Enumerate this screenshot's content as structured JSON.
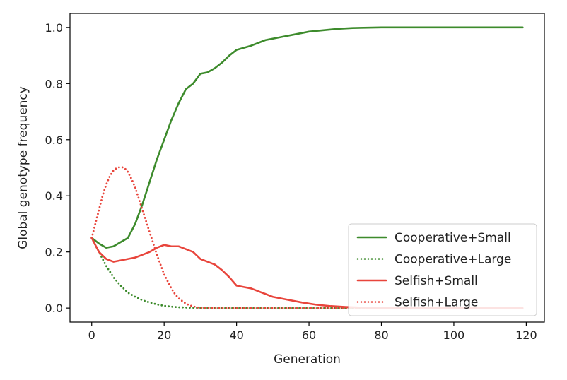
{
  "chart_data": {
    "type": "line",
    "xlabel": "Generation",
    "ylabel": "Global genotype frequency",
    "xlim": [
      -6,
      125
    ],
    "ylim": [
      -0.05,
      1.05
    ],
    "xticks": [
      0,
      20,
      40,
      60,
      80,
      100,
      120
    ],
    "yticks": [
      0.0,
      0.2,
      0.4,
      0.6,
      0.8,
      1.0
    ],
    "grid": false,
    "legend_position": "lower-right",
    "series": [
      {
        "name": "Cooperative+Small",
        "color": "#3d8b2c",
        "style": "solid",
        "x": [
          0,
          2,
          4,
          6,
          8,
          10,
          12,
          14,
          16,
          18,
          20,
          22,
          24,
          26,
          28,
          30,
          32,
          34,
          36,
          38,
          40,
          44,
          48,
          52,
          56,
          60,
          64,
          68,
          72,
          80,
          90,
          100,
          110,
          119
        ],
        "y": [
          0.25,
          0.23,
          0.215,
          0.22,
          0.235,
          0.25,
          0.3,
          0.37,
          0.45,
          0.53,
          0.6,
          0.67,
          0.73,
          0.78,
          0.8,
          0.835,
          0.84,
          0.855,
          0.875,
          0.9,
          0.92,
          0.935,
          0.955,
          0.965,
          0.975,
          0.985,
          0.99,
          0.995,
          0.998,
          1.0,
          1.0,
          1.0,
          1.0,
          1.0
        ]
      },
      {
        "name": "Cooperative+Large",
        "color": "#3d8b2c",
        "style": "dotted",
        "x": [
          0,
          2,
          4,
          6,
          8,
          10,
          12,
          14,
          16,
          18,
          20,
          22,
          24,
          26,
          28,
          30,
          35,
          40,
          50,
          60,
          70,
          80,
          90,
          100,
          110,
          119
        ],
        "y": [
          0.25,
          0.2,
          0.15,
          0.11,
          0.08,
          0.055,
          0.04,
          0.028,
          0.02,
          0.013,
          0.008,
          0.005,
          0.003,
          0.002,
          0.001,
          0.0005,
          0.0,
          0.0,
          0.0,
          0.0,
          0.0,
          0.0,
          0.0,
          0.0,
          0.0,
          0.0
        ]
      },
      {
        "name": "Selfish+Small",
        "color": "#e8453c",
        "style": "solid",
        "x": [
          0,
          2,
          4,
          6,
          8,
          10,
          12,
          14,
          16,
          18,
          20,
          22,
          24,
          26,
          28,
          30,
          32,
          34,
          36,
          38,
          40,
          42,
          44,
          46,
          48,
          50,
          54,
          58,
          62,
          66,
          70,
          74,
          80,
          90,
          100,
          110,
          119
        ],
        "y": [
          0.25,
          0.2,
          0.175,
          0.165,
          0.17,
          0.175,
          0.18,
          0.19,
          0.2,
          0.215,
          0.225,
          0.22,
          0.22,
          0.21,
          0.2,
          0.175,
          0.165,
          0.155,
          0.135,
          0.11,
          0.08,
          0.075,
          0.07,
          0.06,
          0.05,
          0.04,
          0.03,
          0.02,
          0.012,
          0.007,
          0.004,
          0.002,
          0.0,
          0.0,
          0.0,
          0.0,
          0.0
        ]
      },
      {
        "name": "Selfish+Large",
        "color": "#e8453c",
        "style": "dotted",
        "x": [
          0,
          1,
          2,
          3,
          4,
          5,
          6,
          7,
          8,
          9,
          10,
          11,
          12,
          13,
          14,
          15,
          16,
          17,
          18,
          19,
          20,
          21,
          22,
          23,
          24,
          25,
          26,
          27,
          28,
          29,
          30,
          35,
          40,
          50,
          60,
          70,
          80,
          90,
          100,
          110,
          119
        ],
        "y": [
          0.25,
          0.3,
          0.35,
          0.4,
          0.44,
          0.47,
          0.49,
          0.5,
          0.503,
          0.5,
          0.485,
          0.46,
          0.43,
          0.39,
          0.35,
          0.31,
          0.27,
          0.23,
          0.19,
          0.155,
          0.12,
          0.095,
          0.07,
          0.05,
          0.035,
          0.025,
          0.016,
          0.01,
          0.006,
          0.003,
          0.001,
          0.0,
          0.0,
          0.0,
          0.0,
          0.0,
          0.0,
          0.0,
          0.0,
          0.0,
          0.0
        ]
      }
    ]
  }
}
